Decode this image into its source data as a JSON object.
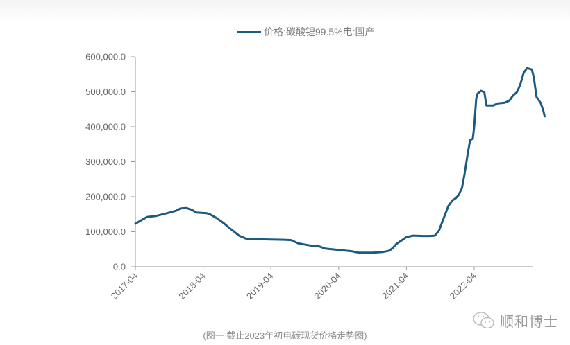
{
  "chart_data": {
    "type": "line",
    "title": "",
    "xlabel": "",
    "ylabel": "",
    "legend": [
      {
        "name": "价格:碳酸锂99.5%电:国产",
        "color": "#1c5a80"
      }
    ],
    "legend_position": "top",
    "grid": false,
    "ylim": [
      0,
      600000
    ],
    "yticks": [
      0,
      100000,
      200000,
      300000,
      400000,
      500000,
      600000
    ],
    "ytick_labels": [
      "0.0",
      "100,000.0",
      "200,000.0",
      "300,000.0",
      "400,000.0",
      "500,000.0",
      "600,000.0"
    ],
    "xtick_labels": [
      "2017-04",
      "2018-04",
      "2019-04",
      "2020-04",
      "2021-04",
      "2022-04"
    ],
    "x_range_years": [
      2017.25,
      2023.12
    ],
    "series": [
      {
        "name": "价格:碳酸锂99.5%电:国产",
        "color": "#1c5a80",
        "points": [
          [
            2017.25,
            123000
          ],
          [
            2017.33,
            132000
          ],
          [
            2017.42,
            142000
          ],
          [
            2017.55,
            145000
          ],
          [
            2017.7,
            152000
          ],
          [
            2017.85,
            160000
          ],
          [
            2017.92,
            167000
          ],
          [
            2018.0,
            168000
          ],
          [
            2018.08,
            163000
          ],
          [
            2018.15,
            155000
          ],
          [
            2018.3,
            153000
          ],
          [
            2018.35,
            150000
          ],
          [
            2018.45,
            139000
          ],
          [
            2018.55,
            125000
          ],
          [
            2018.65,
            109000
          ],
          [
            2018.78,
            89000
          ],
          [
            2018.9,
            79000
          ],
          [
            2019.2,
            78000
          ],
          [
            2019.45,
            77000
          ],
          [
            2019.55,
            76000
          ],
          [
            2019.65,
            67000
          ],
          [
            2019.85,
            60000
          ],
          [
            2019.95,
            59000
          ],
          [
            2020.05,
            52000
          ],
          [
            2020.25,
            48000
          ],
          [
            2020.45,
            44000
          ],
          [
            2020.55,
            40000
          ],
          [
            2020.75,
            40000
          ],
          [
            2020.9,
            42000
          ],
          [
            2021.0,
            46000
          ],
          [
            2021.05,
            54000
          ],
          [
            2021.1,
            65000
          ],
          [
            2021.2,
            78000
          ],
          [
            2021.25,
            85000
          ],
          [
            2021.35,
            89000
          ],
          [
            2021.5,
            88000
          ],
          [
            2021.6,
            88000
          ],
          [
            2021.67,
            89000
          ],
          [
            2021.73,
            103000
          ],
          [
            2021.8,
            139000
          ],
          [
            2021.87,
            174000
          ],
          [
            2021.93,
            190000
          ],
          [
            2021.98,
            196000
          ],
          [
            2022.02,
            205000
          ],
          [
            2022.07,
            225000
          ],
          [
            2022.11,
            267000
          ],
          [
            2022.15,
            317000
          ],
          [
            2022.19,
            362000
          ],
          [
            2022.23,
            366000
          ],
          [
            2022.25,
            400000
          ],
          [
            2022.28,
            480000
          ],
          [
            2022.3,
            495000
          ],
          [
            2022.35,
            503000
          ],
          [
            2022.4,
            499000
          ],
          [
            2022.43,
            461000
          ],
          [
            2022.53,
            461000
          ],
          [
            2022.6,
            467000
          ],
          [
            2022.7,
            469000
          ],
          [
            2022.77,
            475000
          ],
          [
            2022.82,
            489000
          ],
          [
            2022.88,
            499000
          ],
          [
            2022.93,
            521000
          ],
          [
            2022.98,
            554000
          ],
          [
            2023.03,
            568000
          ],
          [
            2023.1,
            564000
          ],
          [
            2023.13,
            541000
          ],
          [
            2023.17,
            485000
          ],
          [
            2023.23,
            469000
          ],
          [
            2023.27,
            446000
          ],
          [
            2023.29,
            430000
          ]
        ]
      }
    ]
  },
  "caption": "(图一 截止2023年初电碳现货价格走势图)",
  "watermark": {
    "icon": "wechat-icon",
    "text": "顺和博士"
  }
}
